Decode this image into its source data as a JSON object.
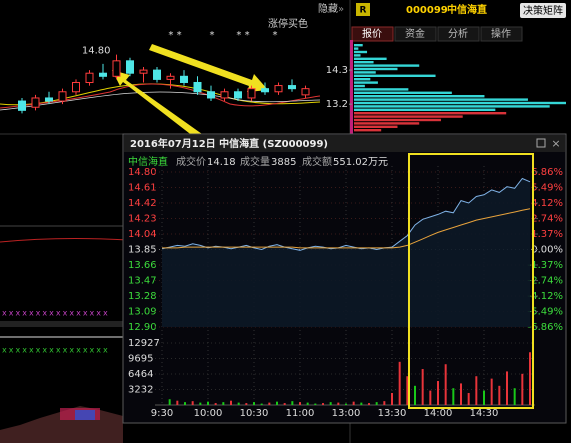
{
  "header": {
    "hide": "隐藏",
    "badge": "R",
    "code": "000099",
    "name": "中信海直",
    "button": "决策矩阵"
  },
  "tabs": [
    "报价",
    "资金",
    "分析",
    "操作"
  ],
  "background_chart": {
    "high_label": "14.80",
    "markers": [
      "* *",
      "*",
      "* *",
      "*"
    ],
    "signal": "涨停买色",
    "open": [
      13.3,
      13.1,
      13.4,
      13.3,
      13.6,
      13.9,
      14.2,
      14.1,
      14.6,
      14.2,
      14.3,
      14.0,
      14.1,
      13.9,
      13.6,
      13.4,
      13.6,
      13.4,
      13.7,
      13.6,
      13.8,
      13.5
    ],
    "high": [
      13.4,
      13.5,
      13.6,
      13.7,
      14.0,
      14.3,
      14.5,
      14.8,
      14.7,
      14.4,
      14.4,
      14.2,
      14.3,
      14.1,
      13.8,
      13.7,
      13.7,
      13.8,
      13.9,
      13.9,
      14.0,
      13.8
    ],
    "low": [
      12.9,
      13.0,
      13.2,
      13.2,
      13.5,
      13.8,
      14.0,
      14.0,
      14.1,
      13.9,
      13.9,
      13.7,
      13.8,
      13.5,
      13.3,
      13.3,
      13.3,
      13.3,
      13.5,
      13.5,
      13.6,
      13.4
    ],
    "close": [
      13.0,
      13.4,
      13.3,
      13.6,
      13.9,
      14.2,
      14.1,
      14.6,
      14.2,
      14.3,
      14.0,
      14.1,
      13.9,
      13.6,
      13.4,
      13.6,
      13.4,
      13.7,
      13.6,
      13.8,
      13.7,
      13.7
    ],
    "ylim": [
      12.3,
      16.0
    ],
    "yticks": [
      13.2,
      14.3
    ]
  },
  "order_book": {
    "values": [
      8,
      4,
      12,
      6,
      30,
      18,
      60,
      40,
      20,
      75,
      15,
      22,
      10,
      50,
      90,
      120,
      160,
      195,
      180,
      130,
      140,
      100,
      80,
      60,
      40,
      25
    ],
    "colors": [
      "#35d6d6",
      "#35d6d6",
      "#35d6d6",
      "#35d6d6",
      "#35d6d6",
      "#35d6d6",
      "#35d6d6",
      "#35d6d6",
      "#35d6d6",
      "#35d6d6",
      "#35d6d6",
      "#35d6d6",
      "#35d6d6",
      "#35d6d6",
      "#35d6d6",
      "#35d6d6",
      "#35d6d6",
      "#35d6d6",
      "#35d6d6",
      "#35d6d6",
      "#d8333a",
      "#d8333a",
      "#d8333a",
      "#d8333a",
      "#d8333a",
      "#d8333a"
    ]
  },
  "popup": {
    "title": "2016年07月12日 中信海直 (SZ000099)",
    "stock": "中信海直",
    "stats": [
      {
        "label": "成交价",
        "value": 14.18
      },
      {
        "label": "成交量",
        "value": 3885
      },
      {
        "label": "成交额",
        "value": "551.02万元"
      }
    ]
  },
  "chart_data": [
    {
      "type": "line",
      "x": [
        0,
        5,
        10,
        15,
        20,
        25,
        30,
        35,
        40,
        45,
        50,
        55,
        60,
        65,
        70,
        75,
        80,
        85,
        90,
        95,
        100,
        105,
        110,
        115,
        120,
        125,
        130,
        135,
        140,
        145,
        150,
        155,
        160,
        165,
        170,
        175,
        180,
        185,
        190,
        195,
        200,
        205,
        210,
        215,
        220,
        225,
        230,
        235,
        240
      ],
      "series": [
        {
          "color": "#7fb2e6",
          "values": [
            13.86,
            13.88,
            13.9,
            13.89,
            13.92,
            13.9,
            13.87,
            13.89,
            13.88,
            13.86,
            13.88,
            13.9,
            13.87,
            13.85,
            13.89,
            13.91,
            13.88,
            13.86,
            13.84,
            13.87,
            13.89,
            13.88,
            13.86,
            13.87,
            13.9,
            13.88,
            13.86,
            13.87,
            13.85,
            13.87,
            13.88,
            13.95,
            14.02,
            14.15,
            14.22,
            14.25,
            14.28,
            14.32,
            14.3,
            14.45,
            14.42,
            14.5,
            14.52,
            14.58,
            14.55,
            14.62,
            14.6,
            14.72,
            14.68
          ]
        },
        {
          "color": "#e8a33c",
          "values": [
            13.87,
            13.87,
            13.87,
            13.88,
            13.88,
            13.88,
            13.88,
            13.88,
            13.88,
            13.88,
            13.88,
            13.88,
            13.88,
            13.88,
            13.88,
            13.88,
            13.88,
            13.88,
            13.87,
            13.87,
            13.87,
            13.87,
            13.87,
            13.87,
            13.87,
            13.87,
            13.87,
            13.87,
            13.87,
            13.87,
            13.87,
            13.88,
            13.9,
            13.94,
            13.98,
            14.02,
            14.06,
            14.09,
            14.12,
            14.15,
            14.18,
            14.21,
            14.23,
            14.25,
            14.27,
            14.29,
            14.31,
            14.33,
            14.35
          ]
        }
      ],
      "xlim": [
        0,
        240
      ],
      "xticks": [
        {
          "value": 0,
          "label": "9:30"
        },
        {
          "value": 30,
          "label": "10:00"
        },
        {
          "value": 60,
          "label": "10:30"
        },
        {
          "value": 90,
          "label": "11:00"
        },
        {
          "value": 120,
          "label": "13:00"
        },
        {
          "value": 150,
          "label": "13:30"
        },
        {
          "value": 180,
          "label": "14:00"
        },
        {
          "value": 210,
          "label": "14:30"
        }
      ],
      "ylim": [
        12.9,
        14.8
      ],
      "yticks": [
        {
          "value": 14.8,
          "label": "14.80"
        },
        14.61,
        14.42,
        14.23,
        14.04,
        13.85,
        13.66,
        13.47,
        13.28,
        13.09,
        {
          "value": 12.9,
          "label": "12.90"
        }
      ],
      "y2lim": [
        -6.86,
        6.86
      ],
      "y2ticks": [
        {
          "value": 6.86,
          "label": "6.86%"
        },
        {
          "value": 5.49,
          "label": "5.49%"
        },
        {
          "value": 4.12,
          "label": "4.12%"
        },
        {
          "value": 2.74,
          "label": "2.74%"
        },
        {
          "value": 1.37,
          "label": "1.37%"
        },
        {
          "value": 0,
          "label": "0.00%"
        },
        {
          "value": -1.37,
          "label": "-1.37%"
        },
        {
          "value": -2.74,
          "label": "-2.74%"
        },
        {
          "value": -4.12,
          "label": "-4.12%"
        },
        {
          "value": -5.49,
          "label": "-5.49%"
        },
        {
          "value": -6.86,
          "label": "-6.86%"
        }
      ],
      "grid": true
    },
    {
      "type": "bar",
      "x": [
        5,
        10,
        15,
        20,
        25,
        30,
        35,
        40,
        45,
        50,
        55,
        60,
        65,
        70,
        75,
        80,
        85,
        90,
        95,
        100,
        105,
        110,
        115,
        120,
        125,
        130,
        135,
        140,
        145,
        150,
        155,
        160,
        165,
        170,
        175,
        180,
        185,
        190,
        195,
        200,
        205,
        210,
        215,
        220,
        225,
        230,
        235,
        240
      ],
      "values": [
        1200,
        900,
        600,
        800,
        500,
        700,
        400,
        600,
        900,
        500,
        400,
        600,
        300,
        500,
        700,
        400,
        800,
        600,
        500,
        300,
        400,
        600,
        500,
        300,
        700,
        500,
        400,
        600,
        800,
        2500,
        9000,
        6000,
        4000,
        7500,
        3000,
        5000,
        8500,
        3500,
        4500,
        2500,
        6000,
        3000,
        5500,
        4000,
        7000,
        3500,
        6500,
        11000
      ],
      "colors": [
        "#19c819",
        "#e8343a",
        "#19c819",
        "#e8343a",
        "#19c819",
        "#19c819",
        "#e8343a",
        "#19c819",
        "#e8343a",
        "#19c819",
        "#e8343a",
        "#19c819",
        "#19c819",
        "#e8343a",
        "#19c819",
        "#e8343a",
        "#19c819",
        "#e8343a",
        "#19c819",
        "#19c819",
        "#e8343a",
        "#19c819",
        "#e8343a",
        "#19c819",
        "#e8343a",
        "#19c819",
        "#e8343a",
        "#19c819",
        "#e8343a",
        "#e8343a",
        "#e8343a",
        "#e8343a",
        "#19c819",
        "#e8343a",
        "#e8343a",
        "#e8343a",
        "#e8343a",
        "#19c819",
        "#e8343a",
        "#e8343a",
        "#e8343a",
        "#19c819",
        "#e8343a",
        "#e8343a",
        "#e8343a",
        "#19c819",
        "#e8343a",
        "#e8343a"
      ],
      "xlim": [
        0,
        240
      ],
      "ylim": [
        0,
        12927
      ],
      "yticks": [
        3232,
        6464,
        9695,
        12927
      ]
    }
  ]
}
